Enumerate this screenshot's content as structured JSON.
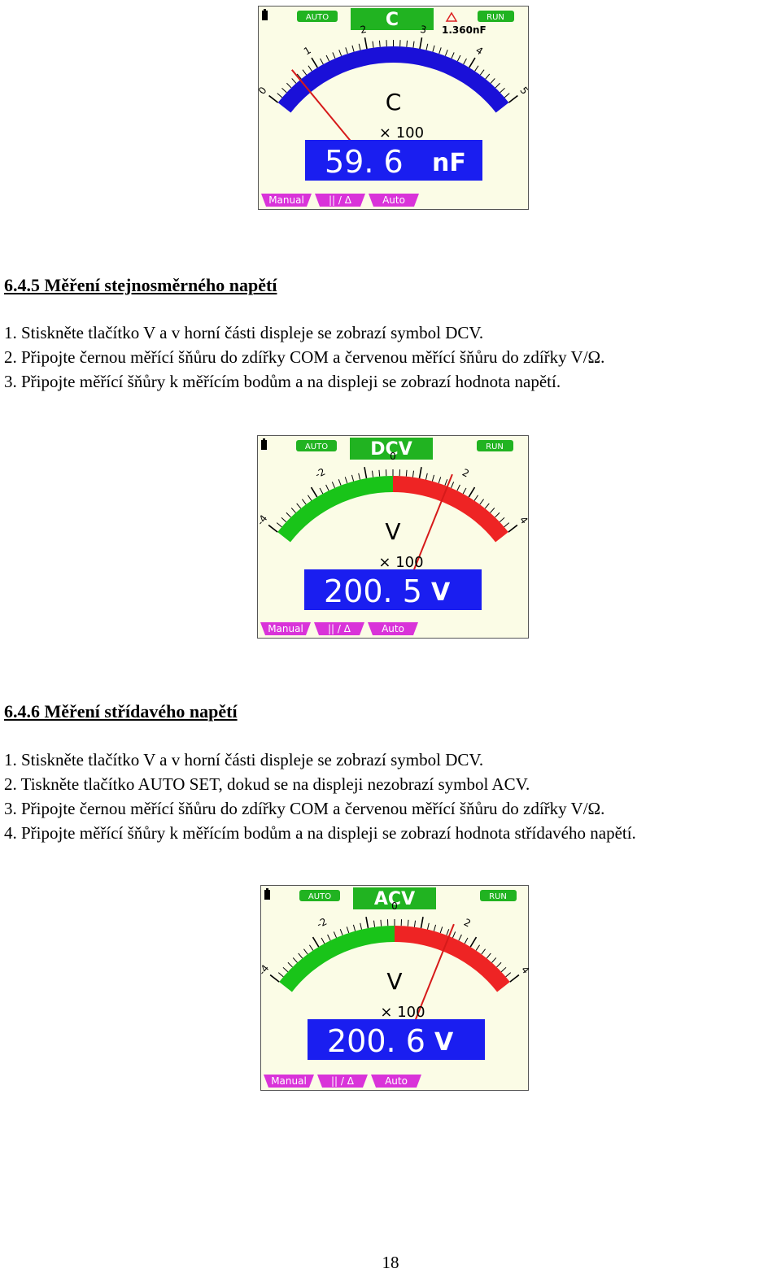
{
  "meters": [
    {
      "mode": "C",
      "badge_left": "AUTO",
      "badge_right": "RUN",
      "ref_value": "1.360nF",
      "scale_labels": [
        "0",
        "1",
        "2",
        "3",
        "4",
        "5"
      ],
      "unit_symbol": "C",
      "multiplier": "× 100",
      "reading": "59. 6",
      "reading_unit": "nF",
      "buttons": [
        "Manual",
        "|| / Δ",
        "Auto"
      ],
      "arc_colors": [
        "#1a10d8"
      ],
      "needle_fraction": 0.12
    },
    {
      "mode": "DCV",
      "badge_left": "AUTO",
      "badge_right": "RUN",
      "scale_labels": [
        "-4",
        "-2",
        "0",
        "2",
        "4"
      ],
      "unit_symbol": "V",
      "multiplier": "× 100",
      "reading": "200. 5",
      "reading_unit": "V",
      "buttons": [
        "Manual",
        "|| / Δ",
        "Auto"
      ],
      "arc_colors": [
        "#19c419",
        "#ee2424"
      ],
      "needle_fraction": 0.71
    },
    {
      "mode": "ACV",
      "badge_left": "AUTO",
      "badge_right": "RUN",
      "scale_labels": [
        "-4",
        "-2",
        "0",
        "2",
        "4"
      ],
      "unit_symbol": "V",
      "multiplier": "× 100",
      "reading": "200. 6",
      "reading_unit": "V",
      "buttons": [
        "Manual",
        "|| / Δ",
        "Auto"
      ],
      "arc_colors": [
        "#19c419",
        "#ee2424"
      ],
      "needle_fraction": 0.71
    }
  ],
  "section_dc": {
    "heading": "6.4.5 Měření stejnosměrného napětí",
    "steps": [
      "1. Stiskněte tlačítko V a v horní části displeje se zobrazí symbol DCV.",
      "2. Připojte černou měřící šňůru do zdířky COM a červenou měřící šňůru do zdířky V/Ω.",
      "3. Připojte měřící šňůry k měřícím bodům a na displeji se zobrazí hodnota napětí."
    ]
  },
  "section_ac": {
    "heading": "6.4.6 Měření střídavého napětí",
    "steps": [
      "1. Stiskněte tlačítko V a v horní části displeje se zobrazí symbol DCV.",
      "2. Tiskněte tlačítko AUTO SET, dokud se na displeji nezobrazí symbol ACV.",
      "3. Připojte černou měřící šňůru do zdířky COM a červenou měřící šňůru do zdířky V/Ω.",
      "4. Připojte měřící šňůry k měřícím bodům a na displeji se zobrazí hodnota střídavého napětí."
    ]
  },
  "page_number": "18"
}
